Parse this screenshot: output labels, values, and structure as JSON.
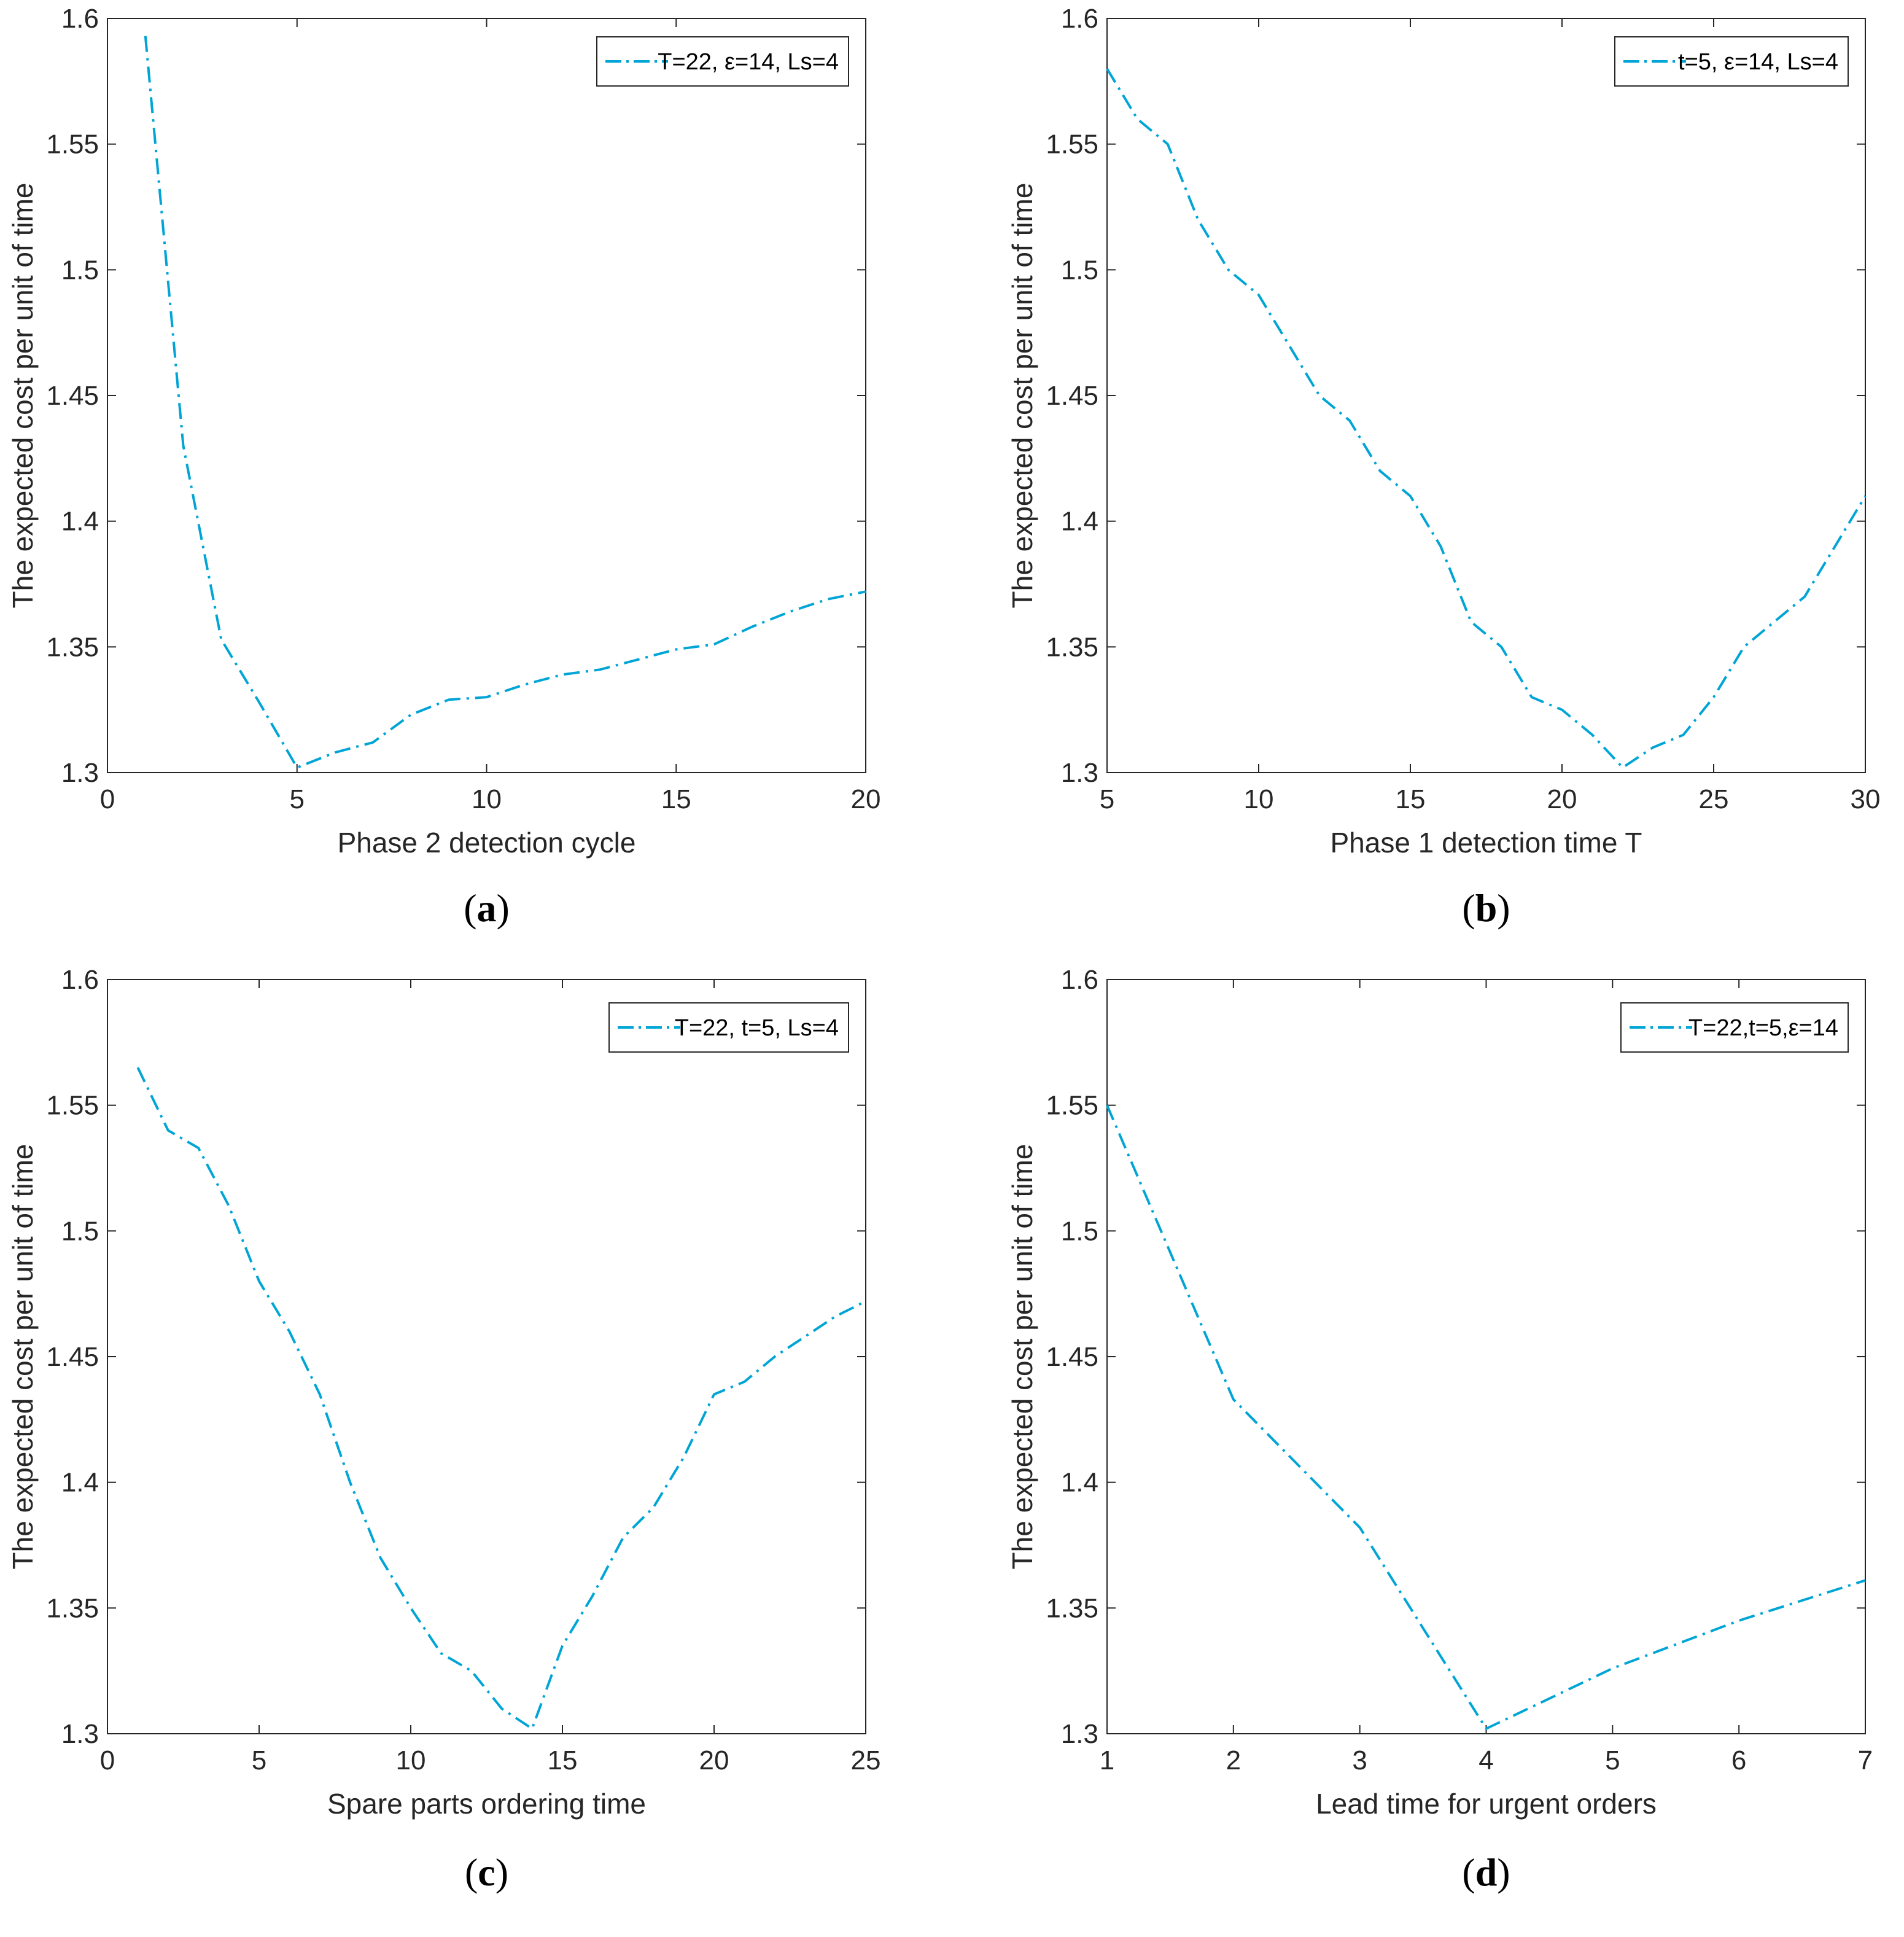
{
  "series_color": "#00a5d6",
  "chart_data": [
    {
      "type": "line",
      "caption_letter": "a",
      "xlabel": "Phase 2 detection cycle",
      "ylabel": "The expected cost per unit of time",
      "xlim": [
        0,
        20
      ],
      "ylim": [
        1.3,
        1.6
      ],
      "xticks": [
        0,
        5,
        10,
        15,
        20
      ],
      "yticks": [
        1.3,
        1.35,
        1.4,
        1.45,
        1.5,
        1.55,
        1.6
      ],
      "series": [
        {
          "name": "T=22, ε=14, Ls=4",
          "x": [
            1,
            2,
            3,
            4,
            5,
            6,
            7,
            8,
            9,
            10,
            11,
            12,
            13,
            14,
            15,
            16,
            17,
            18,
            19,
            20
          ],
          "y": [
            1.593,
            1.43,
            1.353,
            1.328,
            1.302,
            1.308,
            1.312,
            1.323,
            1.329,
            1.33,
            1.335,
            1.339,
            1.341,
            1.345,
            1.349,
            1.351,
            1.358,
            1.364,
            1.369,
            1.372
          ]
        }
      ]
    },
    {
      "type": "line",
      "caption_letter": "b",
      "xlabel": "Phase 1 detection time T",
      "ylabel": "The expected cost per unit of time",
      "xlim": [
        5,
        30
      ],
      "ylim": [
        1.3,
        1.6
      ],
      "xticks": [
        5,
        10,
        15,
        20,
        25,
        30
      ],
      "yticks": [
        1.3,
        1.35,
        1.4,
        1.45,
        1.5,
        1.55,
        1.6
      ],
      "series": [
        {
          "name": "t=5, ε=14, Ls=4",
          "x": [
            5,
            6,
            7,
            8,
            9,
            10,
            11,
            12,
            13,
            14,
            15,
            16,
            17,
            18,
            19,
            20,
            21,
            22,
            23,
            24,
            25,
            26,
            27,
            28,
            29,
            30
          ],
          "y": [
            1.58,
            1.56,
            1.55,
            1.52,
            1.5,
            1.49,
            1.47,
            1.45,
            1.44,
            1.42,
            1.41,
            1.39,
            1.36,
            1.35,
            1.33,
            1.325,
            1.315,
            1.302,
            1.31,
            1.315,
            1.33,
            1.35,
            1.36,
            1.37,
            1.39,
            1.41
          ]
        }
      ]
    },
    {
      "type": "line",
      "caption_letter": "c",
      "xlabel": "Spare parts ordering time",
      "ylabel": "The expected cost per unit of time",
      "xlim": [
        0,
        25
      ],
      "ylim": [
        1.3,
        1.6
      ],
      "xticks": [
        0,
        5,
        10,
        15,
        20,
        25
      ],
      "yticks": [
        1.3,
        1.35,
        1.4,
        1.45,
        1.5,
        1.55,
        1.6
      ],
      "series": [
        {
          "name": "T=22, t=5, Ls=4",
          "x": [
            1,
            2,
            3,
            4,
            5,
            6,
            7,
            8,
            9,
            10,
            11,
            12,
            13,
            14,
            15,
            16,
            17,
            18,
            19,
            20,
            21,
            22,
            23,
            24,
            25
          ],
          "y": [
            1.565,
            1.54,
            1.533,
            1.51,
            1.48,
            1.46,
            1.435,
            1.4,
            1.37,
            1.35,
            1.332,
            1.325,
            1.31,
            1.302,
            1.335,
            1.355,
            1.378,
            1.39,
            1.41,
            1.435,
            1.44,
            1.45,
            1.458,
            1.466,
            1.472
          ]
        }
      ]
    },
    {
      "type": "line",
      "caption_letter": "d",
      "xlabel": "Lead time for urgent orders",
      "ylabel": "The expected cost per unit of time",
      "xlim": [
        1,
        7
      ],
      "ylim": [
        1.3,
        1.6
      ],
      "xticks": [
        1,
        2,
        3,
        4,
        5,
        6,
        7
      ],
      "yticks": [
        1.3,
        1.35,
        1.4,
        1.45,
        1.5,
        1.55,
        1.6
      ],
      "series": [
        {
          "name": "T=22,t=5,ε=14",
          "x": [
            1,
            2,
            3,
            4,
            5,
            6,
            7
          ],
          "y": [
            1.55,
            1.433,
            1.382,
            1.302,
            1.326,
            1.345,
            1.361
          ]
        }
      ]
    }
  ]
}
